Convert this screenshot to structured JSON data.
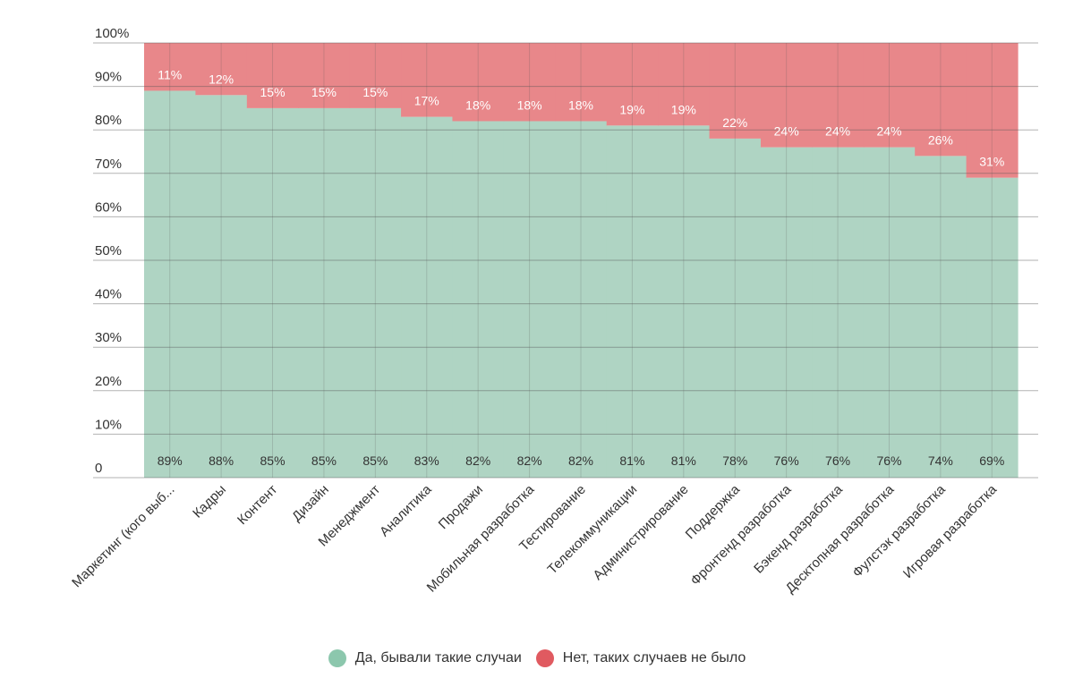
{
  "chart_data": {
    "type": "bar",
    "stacked": true,
    "categories": [
      "Маркетинг (кого выб...",
      "Кадры",
      "Контент",
      "Дизайн",
      "Менеджмент",
      "Аналитика",
      "Продажи",
      "Мобильная разработка",
      "Тестирование",
      "Телекоммуникации",
      "Администрирование",
      "Поддержка",
      "Фронтенд разработка",
      "Бэкенд разработка",
      "Десктопная разработка",
      "Фулстэк разработка",
      "Игровая разработка"
    ],
    "series": [
      {
        "name": "Да, бывали такие случаи",
        "color": "#afd4c3",
        "values": [
          89,
          88,
          85,
          85,
          85,
          83,
          82,
          82,
          82,
          81,
          81,
          78,
          76,
          76,
          76,
          74,
          69
        ],
        "labels": [
          "89%",
          "88%",
          "85%",
          "85%",
          "85%",
          "83%",
          "82%",
          "82%",
          "82%",
          "81%",
          "81%",
          "78%",
          "76%",
          "76%",
          "76%",
          "74%",
          "69%"
        ]
      },
      {
        "name": "Нет, таких случаев не было",
        "color": "#e8878a",
        "values": [
          11,
          12,
          15,
          15,
          15,
          17,
          18,
          18,
          18,
          19,
          19,
          22,
          24,
          24,
          24,
          26,
          31
        ],
        "labels": [
          "11%",
          "12%",
          "15%",
          "15%",
          "15%",
          "17%",
          "18%",
          "18%",
          "18%",
          "19%",
          "19%",
          "22%",
          "24%",
          "24%",
          "24%",
          "26%",
          "31%"
        ]
      }
    ],
    "ylim": [
      0,
      100
    ],
    "yticks": [
      0,
      10,
      20,
      30,
      40,
      50,
      60,
      70,
      80,
      90,
      100
    ],
    "ytick_labels": [
      "0",
      "10%",
      "20%",
      "30%",
      "40%",
      "50%",
      "60%",
      "70%",
      "80%",
      "90%",
      "100%"
    ],
    "grid": true,
    "legend_position": "bottom"
  },
  "legend": {
    "items": [
      {
        "label": "Да, бывали такие случаи",
        "color": "#8cc7ad"
      },
      {
        "label": "Нет, таких случаев не было",
        "color": "#e05a60"
      }
    ]
  }
}
